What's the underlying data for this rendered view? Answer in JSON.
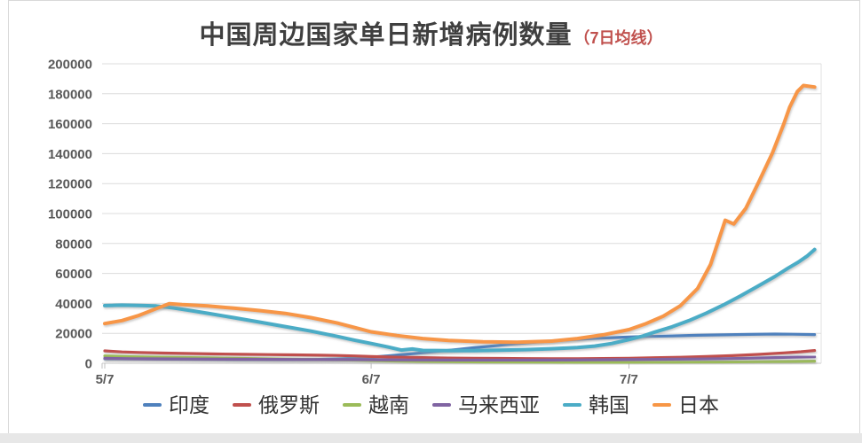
{
  "title": {
    "main": "中国周边国家单日新增病例数量",
    "suffix": "（7日均线）",
    "suffix_color": "#C0504D"
  },
  "chart_data": {
    "type": "line",
    "title": "中国周边国家单日新增病例数量（7日均线）",
    "xlabel": "",
    "ylabel": "",
    "grid": true,
    "legend_position": "bottom",
    "x_axis": {
      "note": "day offset from 5/7",
      "day_range": [
        0,
        82.6
      ],
      "ticks": [
        {
          "label": "5/7",
          "day": 0
        },
        {
          "label": "6/7",
          "day": 31
        },
        {
          "label": "7/7",
          "day": 61
        }
      ]
    },
    "y_axis": {
      "min": 0,
      "max": 200000,
      "step": 20000,
      "tick_values": [
        0,
        20000,
        40000,
        60000,
        80000,
        100000,
        120000,
        140000,
        160000,
        180000,
        200000
      ],
      "tick_labels": [
        "0",
        "20000",
        "40000",
        "60000",
        "80000",
        "100000",
        "120000",
        "140000",
        "160000",
        "180000",
        "200000"
      ]
    },
    "series": [
      {
        "name": "印度",
        "color": "#4F81BD",
        "points": [
          [
            0,
            3000
          ],
          [
            4,
            2850
          ],
          [
            8,
            2700
          ],
          [
            12,
            2600
          ],
          [
            16,
            2450
          ],
          [
            20,
            2400
          ],
          [
            24,
            2500
          ],
          [
            27,
            2900
          ],
          [
            29,
            3400
          ],
          [
            31,
            4100
          ],
          [
            33,
            5000
          ],
          [
            35,
            6000
          ],
          [
            37,
            7000
          ],
          [
            39,
            8100
          ],
          [
            41,
            9200
          ],
          [
            43,
            10400
          ],
          [
            45,
            11500
          ],
          [
            47,
            12600
          ],
          [
            49,
            13600
          ],
          [
            51,
            14500
          ],
          [
            53,
            15300
          ],
          [
            55,
            16000
          ],
          [
            57,
            16600
          ],
          [
            59,
            17100
          ],
          [
            61,
            17500
          ],
          [
            63,
            17900
          ],
          [
            66,
            18300
          ],
          [
            69,
            18700
          ],
          [
            72,
            19000
          ],
          [
            75,
            19300
          ],
          [
            78,
            19500
          ],
          [
            80,
            19400
          ],
          [
            82.6,
            19200
          ]
        ]
      },
      {
        "name": "俄罗斯",
        "color": "#C0504D",
        "points": [
          [
            0,
            8300
          ],
          [
            2,
            7600
          ],
          [
            4,
            7200
          ],
          [
            7,
            6800
          ],
          [
            10,
            6500
          ],
          [
            13,
            6200
          ],
          [
            16,
            6000
          ],
          [
            19,
            5800
          ],
          [
            22,
            5600
          ],
          [
            25,
            5400
          ],
          [
            27,
            5200
          ],
          [
            29,
            4900
          ],
          [
            31,
            4500
          ],
          [
            34,
            4100
          ],
          [
            37,
            3800
          ],
          [
            40,
            3500
          ],
          [
            43,
            3350
          ],
          [
            46,
            3250
          ],
          [
            49,
            3150
          ],
          [
            52,
            3100
          ],
          [
            55,
            3100
          ],
          [
            58,
            3200
          ],
          [
            61,
            3400
          ],
          [
            64,
            3700
          ],
          [
            67,
            4000
          ],
          [
            70,
            4500
          ],
          [
            73,
            5100
          ],
          [
            76,
            5900
          ],
          [
            79,
            6900
          ],
          [
            81,
            7700
          ],
          [
            82.6,
            8500
          ]
        ]
      },
      {
        "name": "越南",
        "color": "#9BBB59",
        "points": [
          [
            0,
            4900
          ],
          [
            3,
            4400
          ],
          [
            6,
            4100
          ],
          [
            9,
            3850
          ],
          [
            12,
            3600
          ],
          [
            15,
            3300
          ],
          [
            18,
            3050
          ],
          [
            21,
            2800
          ],
          [
            24,
            2550
          ],
          [
            27,
            2250
          ],
          [
            29,
            2050
          ],
          [
            31,
            1800
          ],
          [
            34,
            1500
          ],
          [
            37,
            1250
          ],
          [
            40,
            1050
          ],
          [
            44,
            900
          ],
          [
            48,
            780
          ],
          [
            52,
            700
          ],
          [
            56,
            650
          ],
          [
            60,
            650
          ],
          [
            64,
            700
          ],
          [
            68,
            780
          ],
          [
            72,
            900
          ],
          [
            76,
            1050
          ],
          [
            79,
            1200
          ],
          [
            82.6,
            1400
          ]
        ]
      },
      {
        "name": "马来西亚",
        "color": "#8064A2",
        "points": [
          [
            0,
            3300
          ],
          [
            3,
            3050
          ],
          [
            6,
            2950
          ],
          [
            10,
            2850
          ],
          [
            14,
            2750
          ],
          [
            18,
            2650
          ],
          [
            22,
            2550
          ],
          [
            26,
            2500
          ],
          [
            29,
            2400
          ],
          [
            32,
            2300
          ],
          [
            36,
            2200
          ],
          [
            40,
            2150
          ],
          [
            44,
            2100
          ],
          [
            48,
            2100
          ],
          [
            52,
            2150
          ],
          [
            56,
            2250
          ],
          [
            60,
            2400
          ],
          [
            63,
            2550
          ],
          [
            66,
            2700
          ],
          [
            69,
            2850
          ],
          [
            72,
            3100
          ],
          [
            75,
            3400
          ],
          [
            78,
            3800
          ],
          [
            80,
            4000
          ],
          [
            82.6,
            4300
          ]
        ]
      },
      {
        "name": "韩国",
        "color": "#4BACC6",
        "points": [
          [
            0,
            38500
          ],
          [
            2,
            38800
          ],
          [
            4,
            38600
          ],
          [
            6,
            38300
          ],
          [
            8,
            37000
          ],
          [
            10,
            35200
          ],
          [
            12,
            33400
          ],
          [
            15,
            30500
          ],
          [
            18,
            27500
          ],
          [
            21,
            24500
          ],
          [
            24,
            21500
          ],
          [
            27,
            18000
          ],
          [
            29,
            15500
          ],
          [
            31,
            13200
          ],
          [
            33,
            10800
          ],
          [
            34.5,
            8800
          ],
          [
            35.8,
            9500
          ],
          [
            37,
            8600
          ],
          [
            40,
            8400
          ],
          [
            43,
            8400
          ],
          [
            46,
            8700
          ],
          [
            49,
            9100
          ],
          [
            52,
            9700
          ],
          [
            55,
            10500
          ],
          [
            57,
            11500
          ],
          [
            59,
            13200
          ],
          [
            61,
            15800
          ],
          [
            62.5,
            18000
          ],
          [
            64,
            20800
          ],
          [
            66,
            24300
          ],
          [
            68,
            28500
          ],
          [
            70,
            33500
          ],
          [
            72,
            39000
          ],
          [
            74,
            45000
          ],
          [
            76,
            51500
          ],
          [
            78,
            58000
          ],
          [
            79.5,
            63500
          ],
          [
            80.7,
            67500
          ],
          [
            81.7,
            71500
          ],
          [
            82.6,
            76000
          ]
        ]
      },
      {
        "name": "日本",
        "color": "#F79646",
        "points": [
          [
            0,
            26500
          ],
          [
            2,
            28500
          ],
          [
            4,
            32000
          ],
          [
            6,
            36500
          ],
          [
            7.5,
            39800
          ],
          [
            9,
            39200
          ],
          [
            12,
            38300
          ],
          [
            15,
            36800
          ],
          [
            18,
            35200
          ],
          [
            21,
            33300
          ],
          [
            24,
            30500
          ],
          [
            27,
            27000
          ],
          [
            29,
            24000
          ],
          [
            31,
            21000
          ],
          [
            34,
            18500
          ],
          [
            37,
            16500
          ],
          [
            40,
            15200
          ],
          [
            44,
            14300
          ],
          [
            48,
            14000
          ],
          [
            52,
            14800
          ],
          [
            55,
            16500
          ],
          [
            58,
            19000
          ],
          [
            61,
            22500
          ],
          [
            63,
            26500
          ],
          [
            65,
            31500
          ],
          [
            67,
            38500
          ],
          [
            69,
            50000
          ],
          [
            70.5,
            66000
          ],
          [
            72.2,
            95500
          ],
          [
            73.2,
            93000
          ],
          [
            74.6,
            103500
          ],
          [
            76.1,
            121000
          ],
          [
            77.7,
            140500
          ],
          [
            79,
            159500
          ],
          [
            79.7,
            171000
          ],
          [
            80.6,
            181500
          ],
          [
            81.3,
            185500
          ],
          [
            82.6,
            184500
          ]
        ]
      }
    ]
  }
}
